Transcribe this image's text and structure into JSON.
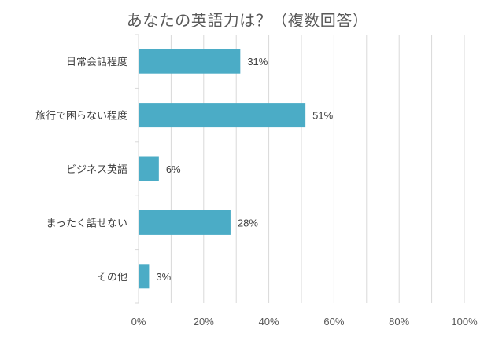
{
  "chart_data": {
    "type": "bar",
    "orientation": "horizontal",
    "title": "あなたの英語力は？（複数回答）",
    "categories": [
      "日常会話程度",
      "旅行で困らない程度",
      "ビジネス英語",
      "まったく話せない",
      "その他"
    ],
    "values": [
      31,
      51,
      6,
      28,
      3
    ],
    "data_labels": [
      "31%",
      "51%",
      "6%",
      "28%",
      "3%"
    ],
    "xlim": [
      0,
      100
    ],
    "x_ticks": [
      "0%",
      "20%",
      "40%",
      "60%",
      "80%",
      "100%"
    ],
    "grid": true,
    "bar_color": "#4BACC6",
    "grid_color": "#D9D9D9"
  }
}
